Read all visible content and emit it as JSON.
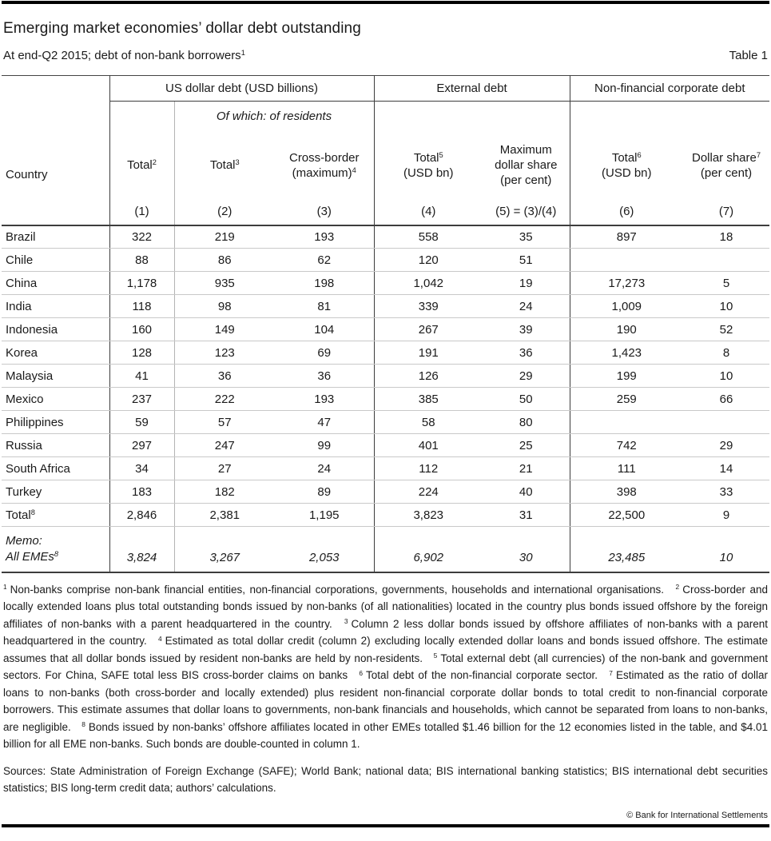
{
  "page": {
    "title": "Emerging market economies’ dollar debt outstanding",
    "subtitle": "At end-Q2 2015; debt of non-bank borrowers",
    "subtitle_sup": "1",
    "table_label": "Table 1",
    "copyright": "© Bank for International Settlements"
  },
  "colors": {
    "text": "#1a1a1a",
    "rule": "#000000",
    "grid_dark": "#3d3d3d",
    "grid_light": "#c9c9c9"
  },
  "table": {
    "country_header": "Country",
    "group_headers": [
      {
        "label": "US dollar debt (USD billions)",
        "span": 3
      },
      {
        "label": "External debt",
        "span": 2
      },
      {
        "label": "Non-financial corporate debt",
        "span": 2
      }
    ],
    "subgroup_header": "Of which: of residents",
    "columns": [
      {
        "lines": [
          {
            "t": "Total",
            "sup": "2"
          }
        ],
        "num": "(1)"
      },
      {
        "lines": [
          {
            "t": "Total",
            "sup": "3"
          }
        ],
        "num": "(2)"
      },
      {
        "lines": [
          {
            "t": "Cross-border",
            "sup": ""
          },
          {
            "t": "(maximum)",
            "sup": "4"
          }
        ],
        "num": "(3)"
      },
      {
        "lines": [
          {
            "t": "Total",
            "sup": "5"
          },
          {
            "t": "(USD bn)",
            "sup": ""
          }
        ],
        "num": "(4)"
      },
      {
        "lines": [
          {
            "t": "Maximum",
            "sup": ""
          },
          {
            "t": "dollar share",
            "sup": ""
          },
          {
            "t": "(per cent)",
            "sup": ""
          }
        ],
        "num": "(5) = (3)/(4)"
      },
      {
        "lines": [
          {
            "t": "Total",
            "sup": "6"
          },
          {
            "t": "(USD bn)",
            "sup": ""
          }
        ],
        "num": "(6)"
      },
      {
        "lines": [
          {
            "t": "Dollar share",
            "sup": "7"
          },
          {
            "t": "(per cent)",
            "sup": ""
          }
        ],
        "num": "(7)"
      }
    ],
    "rows": [
      {
        "country": "Brazil",
        "values": [
          "322",
          "219",
          "193",
          "558",
          "35",
          "897",
          "18"
        ]
      },
      {
        "country": "Chile",
        "values": [
          "88",
          "86",
          "62",
          "120",
          "51",
          "",
          ""
        ]
      },
      {
        "country": "China",
        "values": [
          "1,178",
          "935",
          "198",
          "1,042",
          "19",
          "17,273",
          "5"
        ]
      },
      {
        "country": "India",
        "values": [
          "118",
          "98",
          "81",
          "339",
          "24",
          "1,009",
          "10"
        ]
      },
      {
        "country": "Indonesia",
        "values": [
          "160",
          "149",
          "104",
          "267",
          "39",
          "190",
          "52"
        ]
      },
      {
        "country": "Korea",
        "values": [
          "128",
          "123",
          "69",
          "191",
          "36",
          "1,423",
          "8"
        ]
      },
      {
        "country": "Malaysia",
        "values": [
          "41",
          "36",
          "36",
          "126",
          "29",
          "199",
          "10"
        ]
      },
      {
        "country": "Mexico",
        "values": [
          "237",
          "222",
          "193",
          "385",
          "50",
          "259",
          "66"
        ]
      },
      {
        "country": "Philippines",
        "values": [
          "59",
          "57",
          "47",
          "58",
          "80",
          "",
          ""
        ]
      },
      {
        "country": "Russia",
        "values": [
          "297",
          "247",
          "99",
          "401",
          "25",
          "742",
          "29"
        ]
      },
      {
        "country": "South Africa",
        "values": [
          "34",
          "27",
          "24",
          "112",
          "21",
          "111",
          "14"
        ]
      },
      {
        "country": "Turkey",
        "values": [
          "183",
          "182",
          "89",
          "224",
          "40",
          "398",
          "33"
        ]
      }
    ],
    "total_row": {
      "label": "Total",
      "sup": "8",
      "values": [
        "2,846",
        "2,381",
        "1,195",
        "3,823",
        "31",
        "22,500",
        "9"
      ]
    },
    "memo_row": {
      "label_line1": "Memo:",
      "label_line2": "All EMEs",
      "sup": "8",
      "values": [
        "3,824",
        "3,267",
        "2,053",
        "6,902",
        "30",
        "23,485",
        "10"
      ]
    }
  },
  "footnotes": [
    {
      "marker": "1",
      "text": "Non-banks comprise non-bank financial entities, non-financial corporations, governments, households and international organisations."
    },
    {
      "marker": "2",
      "text": "Cross-border and locally extended loans plus total outstanding bonds issued by non-banks (of all nationalities) located in the country plus bonds issued offshore by the foreign affiliates of non-banks with a parent headquartered in the country."
    },
    {
      "marker": "3",
      "text": "Column 2 less dollar bonds issued by offshore affiliates of non-banks with a parent headquartered in the country."
    },
    {
      "marker": "4",
      "text": "Estimated as total dollar credit (column 2) excluding locally extended dollar loans and bonds issued offshore. The estimate assumes that all dollar bonds issued by resident non-banks are held by non-residents."
    },
    {
      "marker": "5",
      "text": "Total external debt (all currencies) of the non-bank and government sectors. For China, SAFE total less BIS cross-border claims on banks"
    },
    {
      "marker": "6",
      "text": "Total debt of the non-financial corporate sector."
    },
    {
      "marker": "7",
      "text": "Estimated as the ratio of dollar loans to non-banks (both cross-border and locally extended) plus resident non-financial corporate dollar bonds to total credit to non-financial corporate borrowers. This estimate assumes that dollar loans to governments, non-bank financials and households, which cannot be separated from loans to non-banks, are negligible."
    },
    {
      "marker": "8",
      "text": "Bonds issued by non-banks’ offshore affiliates located in other EMEs totalled $1.46 billion for the 12 economies listed in the table, and $4.01 billion for all EME non-banks. Such bonds are double-counted in column 1."
    }
  ],
  "sources": "Sources: State Administration of Foreign Exchange (SAFE); World Bank; national data; BIS international banking statistics; BIS international debt securities statistics; BIS long-term credit data; authors’ calculations."
}
